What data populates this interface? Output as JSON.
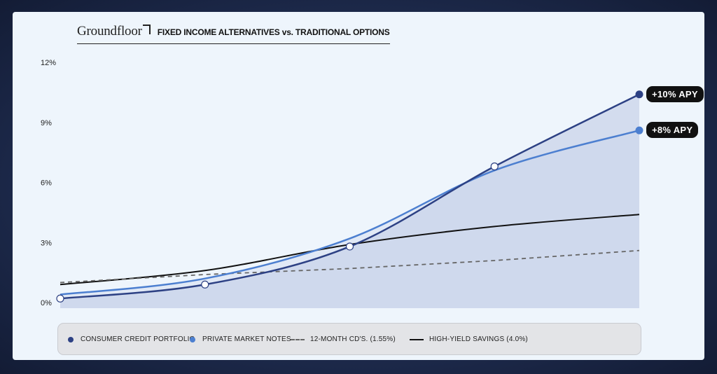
{
  "header": {
    "brand": "Groundfloor",
    "title": "FIXED INCOME ALTERNATIVES vs. TRADITIONAL OPTIONS"
  },
  "colors": {
    "consumer_credit": "#2d4184",
    "private_notes": "#4c7fd0",
    "cds": "#666666",
    "savings": "#111111",
    "fill": "#c9d3ea"
  },
  "badges": {
    "consumer_credit": "+10% APY",
    "private_notes": "+8% APY"
  },
  "legend": {
    "consumer_credit": "CONSUMER CREDIT PORTFOLIO",
    "private_notes": "PRIVATE MARKET NOTES",
    "cds": "12-MONTH CD'S. (1.55%)",
    "savings": "HIGH-YIELD SAVINGS (4.0%)"
  },
  "chart_data": {
    "type": "line",
    "title": "FIXED INCOME ALTERNATIVES vs. TRADITIONAL OPTIONS",
    "xlabel": "",
    "ylabel": "",
    "x": [
      0,
      1,
      2,
      3,
      4
    ],
    "ylim": [
      0,
      12
    ],
    "yticks": [
      "0%",
      "3%",
      "6%",
      "9%",
      "12%"
    ],
    "grid": false,
    "legend_position": "bottom",
    "series": [
      {
        "name": "CONSUMER CREDIT PORTFOLIO",
        "key": "consumer_credit",
        "x": [
          0,
          1,
          2,
          3,
          4
        ],
        "values": [
          0.2,
          0.9,
          2.8,
          6.8,
          10.4
        ],
        "markers": [
          0,
          1,
          2,
          3
        ]
      },
      {
        "name": "PRIVATE MARKET NOTES",
        "key": "private_notes",
        "x": [
          0,
          1,
          2,
          3,
          4
        ],
        "values": [
          0.4,
          1.2,
          3.2,
          6.6,
          8.6
        ]
      },
      {
        "name": "12-MONTH CD'S. (1.55%)",
        "key": "cds",
        "x": [
          0,
          1,
          2,
          3,
          4
        ],
        "values": [
          1.0,
          1.4,
          1.7,
          2.1,
          2.6
        ],
        "style": "dashed"
      },
      {
        "name": "HIGH-YIELD SAVINGS (4.0%)",
        "key": "savings",
        "x": [
          0,
          1,
          2,
          3,
          4
        ],
        "values": [
          0.9,
          1.6,
          2.9,
          3.8,
          4.4
        ]
      }
    ]
  }
}
